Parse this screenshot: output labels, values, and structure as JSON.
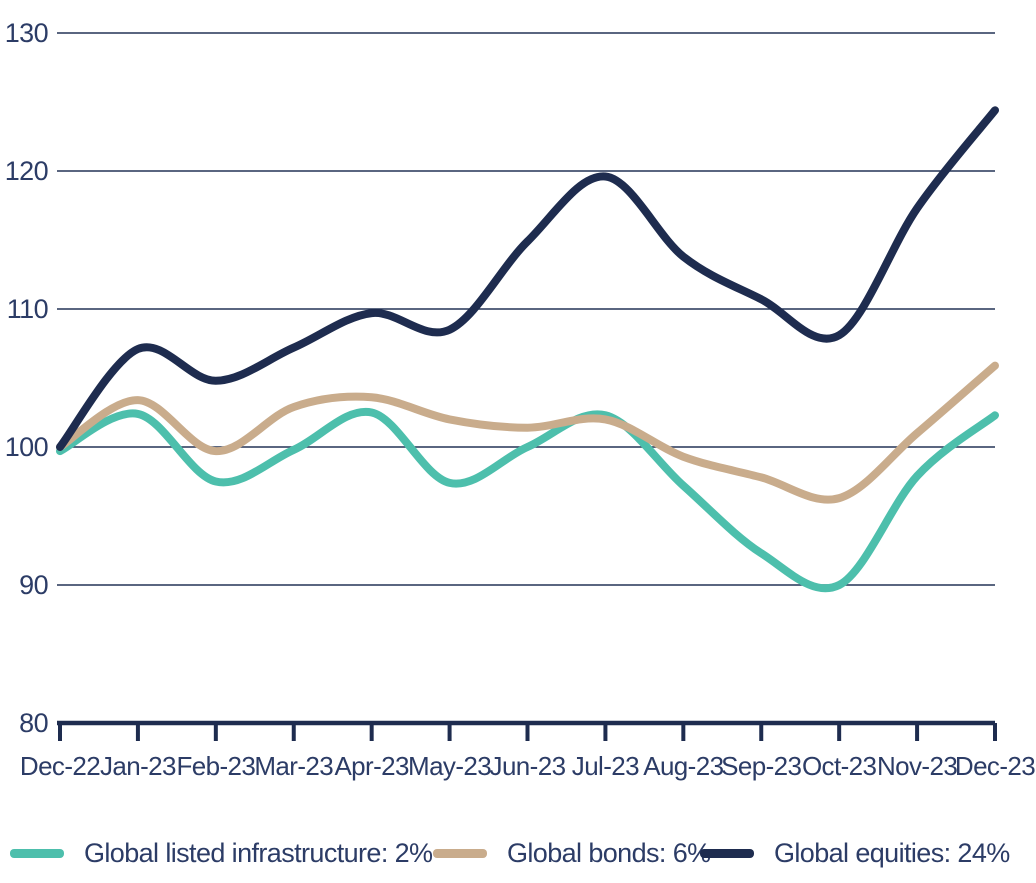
{
  "chart_data": {
    "type": "line",
    "title": "",
    "xlabel": "",
    "ylabel": "",
    "x": [
      "Dec-22",
      "Jan-23",
      "Feb-23",
      "Mar-23",
      "Apr-23",
      "May-23",
      "Jun-23",
      "Jul-23",
      "Aug-23",
      "Sep-23",
      "Oct-23",
      "Nov-23",
      "Dec-23"
    ],
    "series": [
      {
        "name": "Global listed infrastructure: 2%",
        "color": "#4DBFAC",
        "values": [
          99.7,
          102.4,
          97.5,
          99.8,
          102.5,
          97.4,
          100.0,
          102.3,
          97.2,
          92.3,
          90.0,
          97.9,
          102.3
        ]
      },
      {
        "name": "Global bonds: 6%",
        "color": "#C9AC8C",
        "values": [
          100.0,
          103.4,
          99.7,
          102.9,
          103.6,
          102.0,
          101.4,
          102.0,
          99.3,
          97.8,
          96.3,
          101.0,
          105.9
        ]
      },
      {
        "name": "Global equities: 24%",
        "color": "#1E2C4F",
        "values": [
          100.0,
          107.1,
          104.8,
          107.2,
          109.7,
          108.5,
          114.9,
          119.6,
          113.8,
          110.7,
          108.1,
          117.3,
          124.4
        ]
      }
    ],
    "ylim": [
      80,
      130
    ],
    "y_ticks": [
      130,
      120,
      110,
      100,
      90,
      80
    ],
    "grid": "horizontal gridlines at 90,100,110,120,130",
    "legend_position": "bottom"
  },
  "style": {
    "axis_color": "#1E2C4F",
    "grid_color": "#233457",
    "text_color": "#2C3C66",
    "background": "#FFFFFF",
    "line_width": 8
  }
}
